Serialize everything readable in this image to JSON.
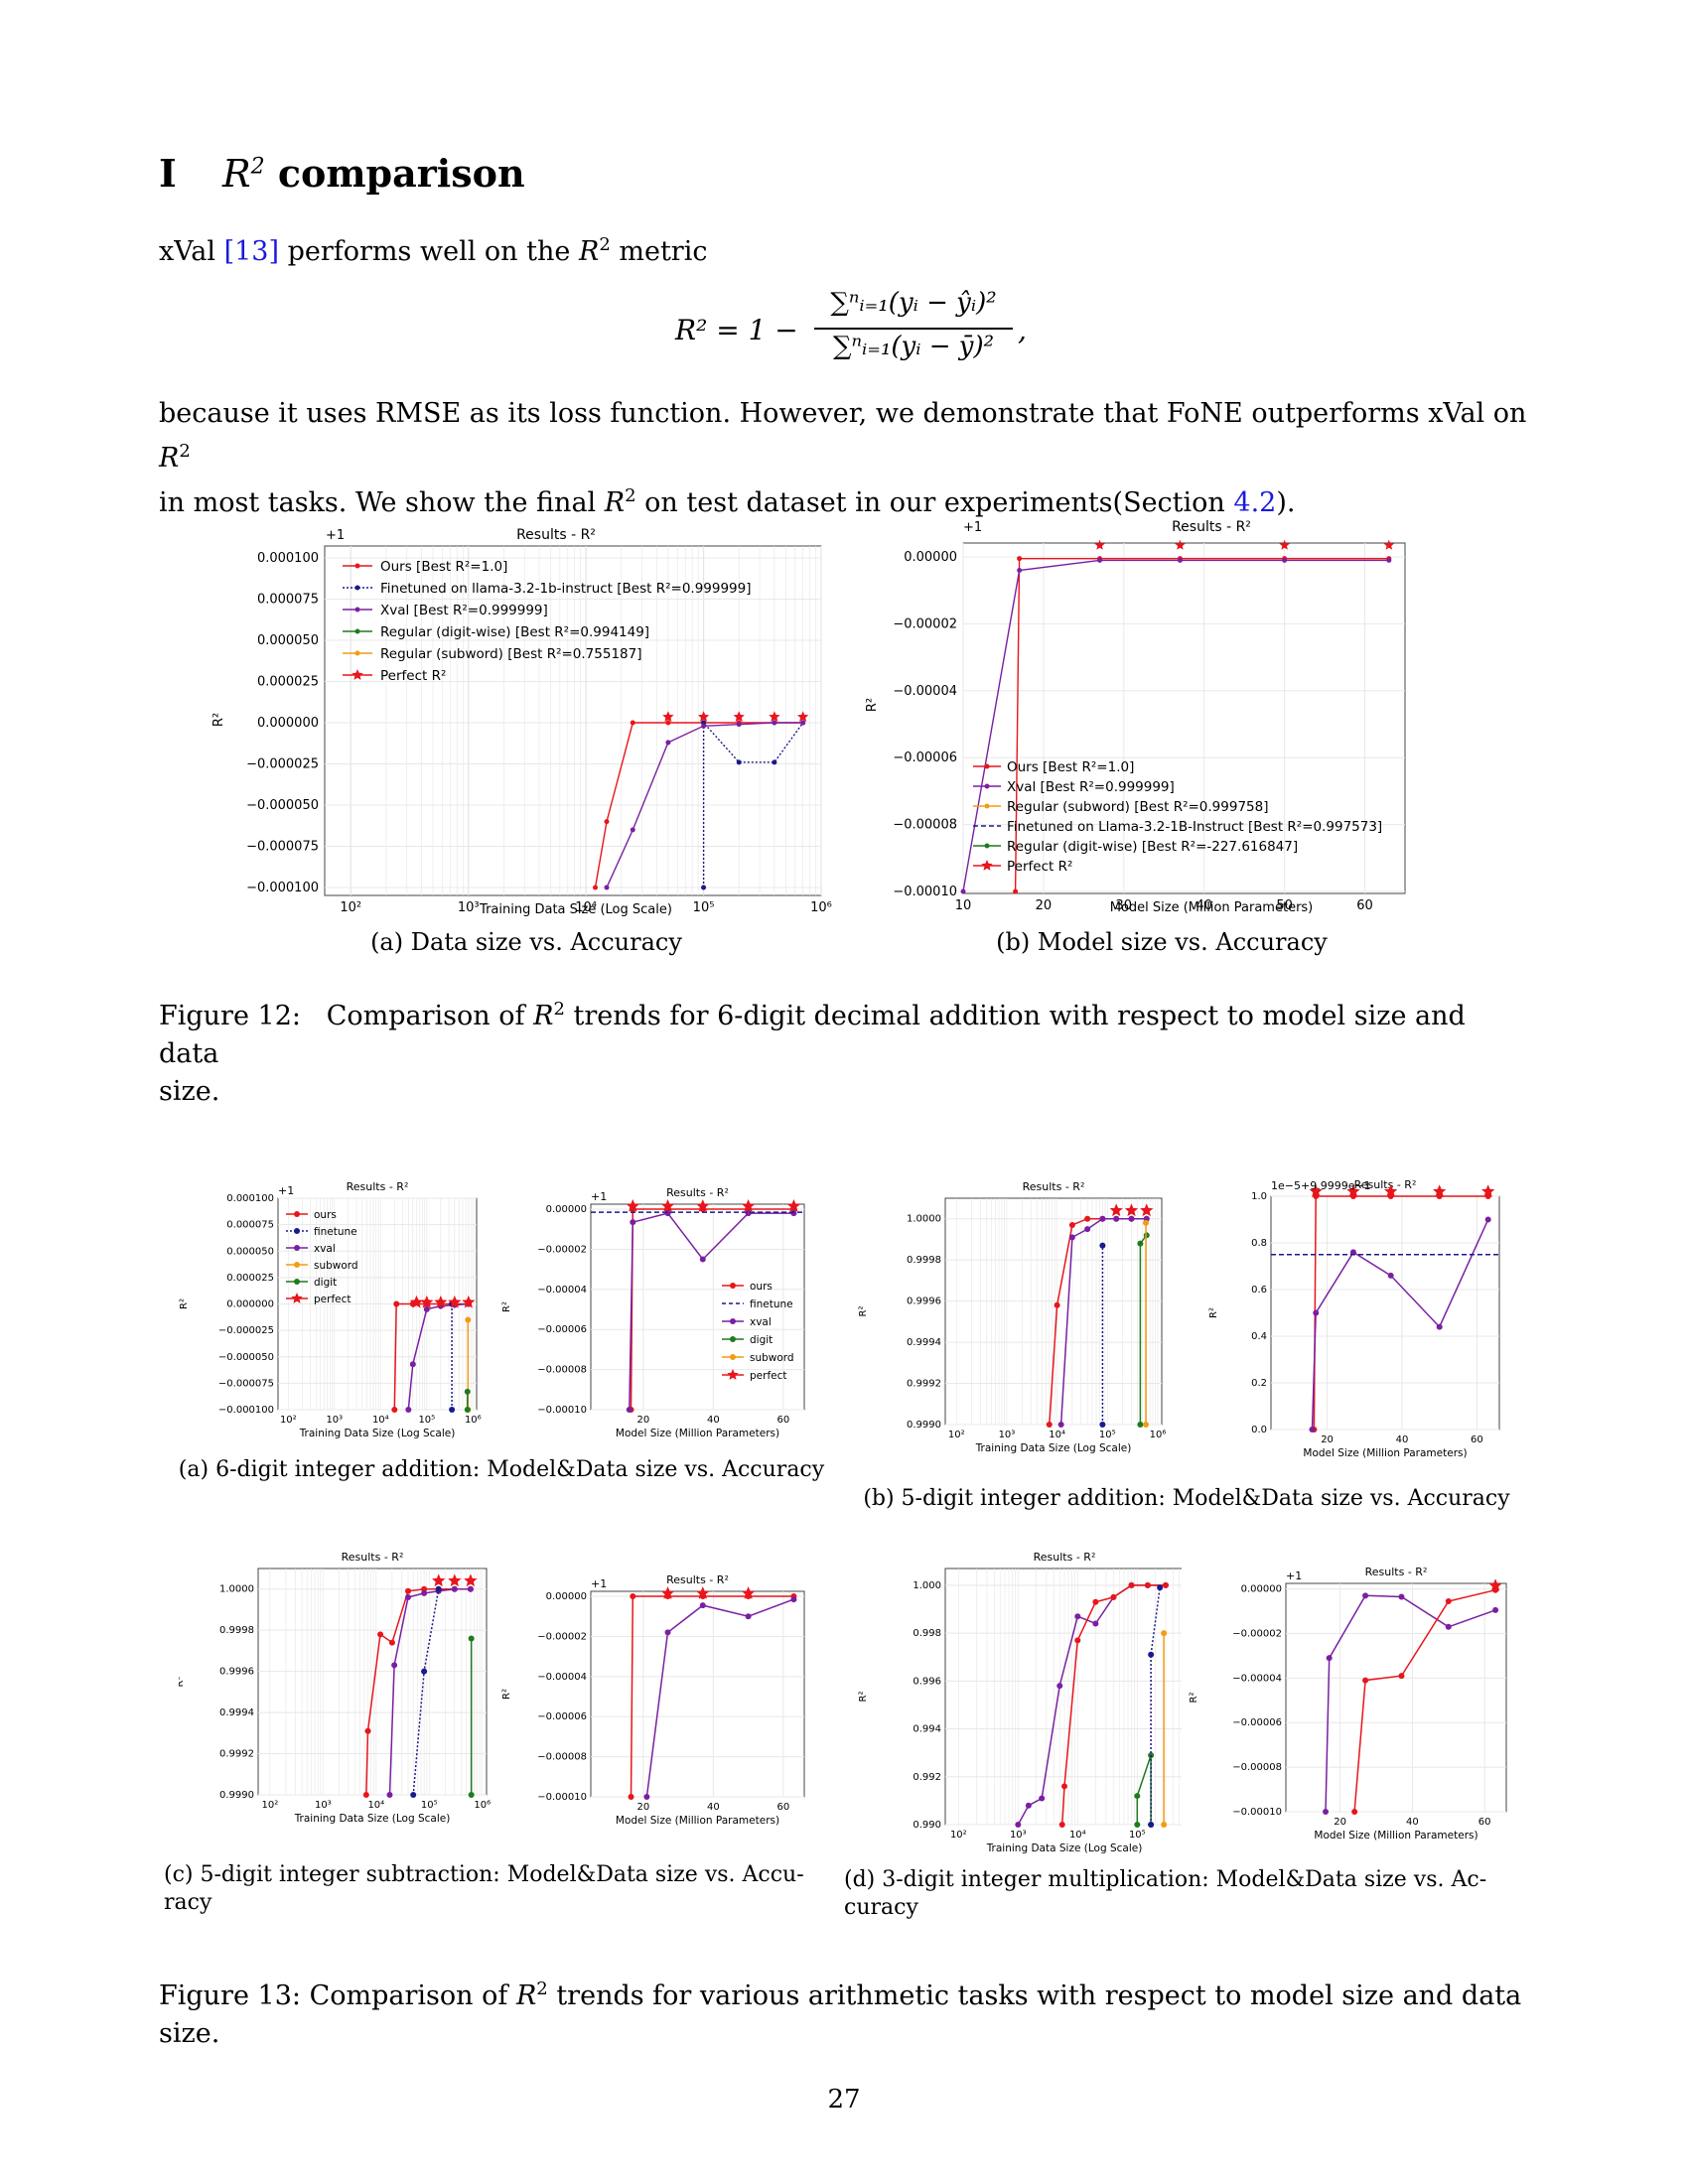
{
  "section": {
    "number": "I",
    "title_tail": "comparison"
  },
  "intro": {
    "text": "xVal",
    "ref": "[13]",
    "tail": "performs well on the",
    "metric": "metric"
  },
  "equation": {
    "lhs": "R² = 1 −",
    "numerator": "∑ⁿᵢ₌₁(yᵢ − ŷᵢ)²",
    "denominator": "∑ⁿᵢ₌₁(yᵢ − ȳ)²",
    "tail": ","
  },
  "para2": {
    "line1": "because it uses RMSE as its loss function. However, we demonstrate that FoNE outperforms xVal on",
    "line2a": "in most tasks. We show the final",
    "line2b": "on test dataset in our experiments(Section",
    "ref": "4.2",
    "line2c": ")."
  },
  "fig12": {
    "a": {
      "title": "Results - R²",
      "offset": "+1",
      "xlabel": "Training Data Size (Log Scale)",
      "ylabel": "R²",
      "yticks": [
        "0.000100",
        "0.000075",
        "0.000050",
        "0.000025",
        "0.000000",
        "−0.000025",
        "−0.000050",
        "−0.000075",
        "−0.000100"
      ],
      "xticks": [
        "10²",
        "10³",
        "10⁴",
        "10⁵",
        "10⁶"
      ],
      "legend": [
        "Ours [Best R²=1.0]",
        "Finetuned on llama-3.2-1b-instruct [Best R²=0.999999]",
        "Xval [Best R²=0.999999]",
        "Regular (digit-wise) [Best R²=0.994149]",
        "Regular (subword) [Best R²=0.755187]",
        "Perfect R²"
      ],
      "caption": "(a) Data size vs. Accuracy"
    },
    "b": {
      "title": "Results - R²",
      "offset": "+1",
      "xlabel": "Model Size (Million Parameters)",
      "ylabel": "R²",
      "yticks": [
        "0.00000",
        "−0.00002",
        "−0.00004",
        "−0.00006",
        "−0.00008",
        "−0.00010"
      ],
      "xticks": [
        "10",
        "20",
        "30",
        "40",
        "50",
        "60"
      ],
      "legend": [
        "Ours [Best R²=1.0]",
        "Xval [Best R²=0.999999]",
        "Regular (subword) [Best R²=0.999758]",
        "Finetuned on Llama-3.2-1B-Instruct [Best R²=0.997573]",
        "Regular (digit-wise) [Best R²=-227.616847]",
        "Perfect R²"
      ],
      "caption": "(b) Model size vs. Accuracy"
    },
    "caption_label": "Figure 12:",
    "caption_text": "Comparison of",
    "caption_tail": "trends for 6-digit decimal addition with respect to model size and data",
    "caption_line2": "size."
  },
  "fig13": {
    "a_caption": "(a) 6-digit integer addition: Model&Data size vs. Accuracy",
    "b_caption": "(b) 5-digit integer addition: Model&Data size vs. Accuracy",
    "c_caption_1": "(c) 5-digit integer subtraction: Model&Data size vs. Accu-",
    "c_caption_2": "racy",
    "d_caption_1": "(d) 3-digit integer multiplication: Model&Data size vs. Ac-",
    "d_caption_2": "curacy",
    "caption_label": "Figure 13:",
    "caption_text": "Comparison of",
    "caption_tail": "trends for various arithmetic tasks with respect to model size and data size.",
    "small_title": "Results - R²",
    "small_xlabel_data": "Training Data Size (Log Scale)",
    "small_xlabel_model": "Model Size (Million Parameters)",
    "small_legend_a": [
      "ours",
      "finetune",
      "xval",
      "subword",
      "digit",
      "perfect"
    ],
    "small_legend_a2": [
      "ours",
      "finetune",
      "xval",
      "digit",
      "subword",
      "perfect"
    ],
    "b2_offset": "1e−5+9.9999e−1"
  },
  "page_number": "27",
  "colors": {
    "ours": "#e8151b",
    "finetune": "#1a1a8c",
    "xval": "#7a1fa2",
    "digit": "#1f7a1f",
    "subword": "#f39c12",
    "perfect": "#e8151b"
  },
  "chart_data": [
    {
      "type": "line",
      "title": "Results - R²",
      "xlabel": "Training Data Size (Log Scale)",
      "ylabel": "R²",
      "x_scale": "log",
      "ylim": [
        -0.0001,
        0.0001
      ],
      "y_offset": 1,
      "series": [
        {
          "name": "Ours [Best R²=1.0]",
          "x": [
            12000,
            15000,
            25000,
            50000,
            100000,
            200000,
            400000,
            700000
          ],
          "y": [
            -0.0001,
            -6e-05,
            0,
            0,
            0,
            0,
            0,
            0
          ]
        },
        {
          "name": "Finetuned on llama-3.2-1b-instruct [Best R²=0.999999]",
          "x": [
            100000,
            100000,
            200000,
            400000,
            700000
          ],
          "y": [
            -0.0001,
            0,
            -2.4e-05,
            -2.4e-05,
            0
          ]
        },
        {
          "name": "Xval [Best R²=0.999999]",
          "x": [
            15000,
            25000,
            50000,
            100000,
            200000,
            400000,
            700000
          ],
          "y": [
            -0.0001,
            -6.5e-05,
            -1.2e-05,
            -2e-06,
            -1e-06,
            0,
            0
          ]
        },
        {
          "name": "Perfect R²",
          "x": [
            50000,
            100000,
            200000,
            400000,
            700000
          ],
          "y": [
            3e-06,
            3e-06,
            3e-06,
            3e-06,
            3e-06
          ]
        }
      ]
    },
    {
      "type": "line",
      "title": "Results - R²",
      "xlabel": "Model Size (Million Parameters)",
      "ylabel": "R²",
      "ylim": [
        -0.0001,
        5e-06
      ],
      "y_offset": 1,
      "series": [
        {
          "name": "Ours [Best R²=1.0]",
          "x": [
            16.5,
            17,
            27,
            37,
            50,
            63
          ],
          "y": [
            -0.0001,
            -5e-07,
            -5e-07,
            -5e-07,
            -5e-07,
            -5e-07
          ]
        },
        {
          "name": "Xval [Best R²=0.999999]",
          "x": [
            10,
            17,
            27,
            37,
            50,
            63
          ],
          "y": [
            -0.0001,
            -4e-06,
            -1e-06,
            -1e-06,
            -1e-06,
            -1e-06
          ]
        },
        {
          "name": "Perfect R²",
          "x": [
            27,
            37,
            50,
            63
          ],
          "y": [
            3e-06,
            3e-06,
            3e-06,
            3e-06
          ]
        }
      ]
    }
  ]
}
